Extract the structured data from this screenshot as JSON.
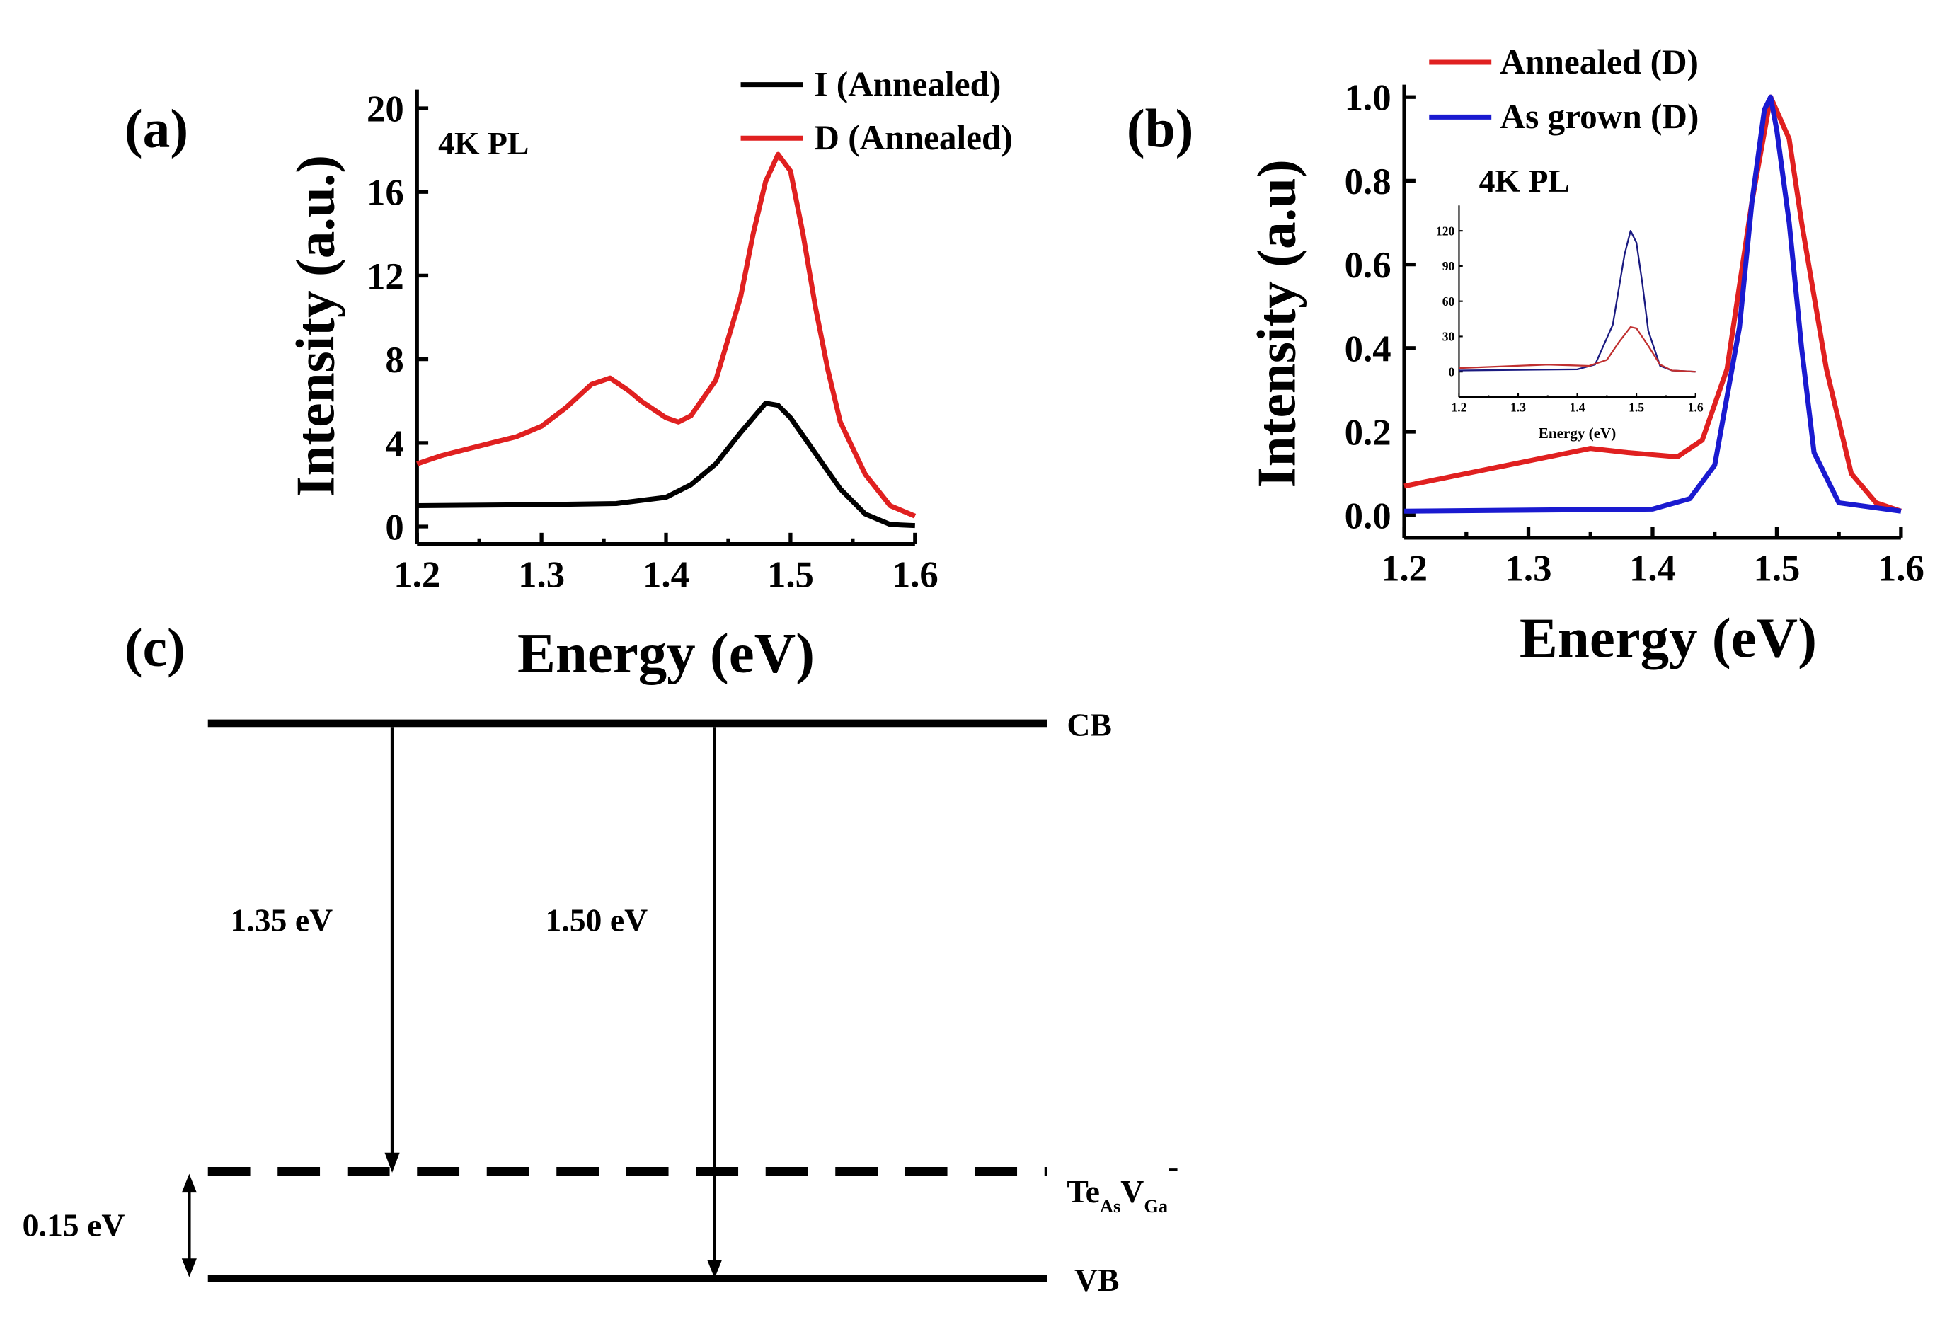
{
  "chart_data": [
    {
      "panel": "(a)",
      "type": "line",
      "annotation": "4K PL",
      "xlabel": "Energy (eV)",
      "ylabel": "Intensity (a.u.)",
      "xlim": [
        1.2,
        1.6
      ],
      "ylim": [
        0,
        20
      ],
      "xticks": [
        "1.2",
        "1.3",
        "1.4",
        "1.5",
        "1.6"
      ],
      "yticks": [
        "0",
        "4",
        "8",
        "12",
        "16",
        "20"
      ],
      "legend_position": "top-right",
      "series": [
        {
          "name": "I (Annealed)",
          "color": "#000000",
          "x": [
            1.2,
            1.3,
            1.36,
            1.4,
            1.42,
            1.44,
            1.46,
            1.48,
            1.49,
            1.5,
            1.52,
            1.54,
            1.56,
            1.58,
            1.6
          ],
          "y": [
            1.0,
            1.05,
            1.1,
            1.4,
            2.0,
            3.0,
            4.5,
            5.9,
            5.8,
            5.2,
            3.5,
            1.8,
            0.6,
            0.1,
            0.05
          ]
        },
        {
          "name": "D (Annealed)",
          "color": "#e02020",
          "x": [
            1.2,
            1.22,
            1.24,
            1.26,
            1.28,
            1.3,
            1.32,
            1.34,
            1.355,
            1.37,
            1.38,
            1.4,
            1.41,
            1.42,
            1.44,
            1.46,
            1.47,
            1.48,
            1.49,
            1.5,
            1.51,
            1.52,
            1.53,
            1.54,
            1.56,
            1.58,
            1.6
          ],
          "y": [
            3.0,
            3.4,
            3.7,
            4.0,
            4.3,
            4.8,
            5.7,
            6.8,
            7.1,
            6.5,
            6.0,
            5.2,
            5.0,
            5.3,
            7.0,
            11.0,
            14.0,
            16.5,
            17.8,
            17.0,
            14.0,
            10.5,
            7.5,
            5.0,
            2.5,
            1.0,
            0.5
          ]
        }
      ]
    },
    {
      "panel": "(b)",
      "type": "line",
      "annotation": "4K PL",
      "xlabel": "Energy (eV)",
      "ylabel": "Intensity (a.u)",
      "xlim": [
        1.2,
        1.6
      ],
      "ylim": [
        0,
        1.0
      ],
      "xticks": [
        "1.2",
        "1.3",
        "1.4",
        "1.5",
        "1.6"
      ],
      "yticks": [
        "0.0",
        "0.2",
        "0.4",
        "0.6",
        "0.8",
        "1.0"
      ],
      "legend_position": "top",
      "series": [
        {
          "name": "Annealed (D)",
          "color": "#e02020",
          "x": [
            1.2,
            1.25,
            1.3,
            1.35,
            1.38,
            1.42,
            1.44,
            1.46,
            1.48,
            1.495,
            1.51,
            1.52,
            1.54,
            1.56,
            1.58,
            1.6
          ],
          "y": [
            0.07,
            0.1,
            0.13,
            0.16,
            0.15,
            0.14,
            0.18,
            0.35,
            0.75,
            1.0,
            0.9,
            0.7,
            0.35,
            0.1,
            0.03,
            0.01
          ]
        },
        {
          "name": "As grown (D)",
          "color": "#1a1ad0",
          "x": [
            1.2,
            1.4,
            1.43,
            1.45,
            1.47,
            1.48,
            1.49,
            1.495,
            1.5,
            1.51,
            1.52,
            1.53,
            1.55,
            1.6
          ],
          "y": [
            0.01,
            0.015,
            0.04,
            0.12,
            0.45,
            0.75,
            0.97,
            1.0,
            0.92,
            0.7,
            0.4,
            0.15,
            0.03,
            0.01
          ]
        }
      ],
      "inset": {
        "xlabel": "Energy (eV)",
        "xlim": [
          1.2,
          1.6
        ],
        "ylim": [
          -10,
          130
        ],
        "xticks": [
          "1.2",
          "1.3",
          "1.4",
          "1.5",
          "1.6"
        ],
        "yticks": [
          "0",
          "30",
          "60",
          "90",
          "120"
        ],
        "series": [
          {
            "name": "As grown",
            "color": "#1a1a80",
            "x": [
              1.2,
              1.4,
              1.43,
              1.46,
              1.48,
              1.49,
              1.5,
              1.51,
              1.52,
              1.54,
              1.56,
              1.6
            ],
            "y": [
              1,
              2,
              6,
              40,
              100,
              120,
              110,
              75,
              35,
              5,
              1,
              0
            ]
          },
          {
            "name": "Annealed",
            "color": "#c03030",
            "x": [
              1.2,
              1.35,
              1.42,
              1.45,
              1.47,
              1.49,
              1.5,
              1.52,
              1.54,
              1.56,
              1.6
            ],
            "y": [
              3,
              6,
              5,
              10,
              25,
              38,
              37,
              22,
              6,
              1,
              0
            ]
          }
        ]
      }
    },
    {
      "panel": "(c)",
      "type": "diagram",
      "levels": {
        "cb": "CB",
        "vb": "VB",
        "defect": "Te",
        "defect_sub1": "As",
        "defect_v": "V",
        "defect_sub2": "Ga",
        "defect_charge": "-"
      },
      "transitions": [
        "1.35 eV",
        "1.50 eV"
      ],
      "defect_depth": "0.15 eV"
    }
  ]
}
